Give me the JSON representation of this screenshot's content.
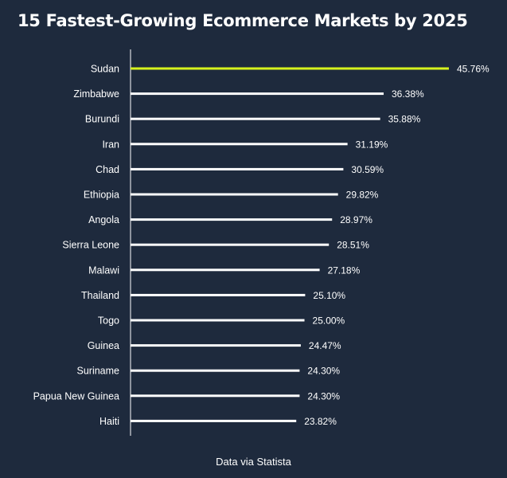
{
  "page": {
    "title": "15 Fastest-Growing Ecommerce Markets by 2025",
    "source": "Data via Statista"
  },
  "colors": {
    "background": "#1e2a3d",
    "highlight": "#d7f21d",
    "bar": "#ffffff",
    "text": "#ffffff"
  },
  "chart_data": {
    "type": "bar",
    "orientation": "horizontal",
    "title": "15 Fastest-Growing Ecommerce Markets by 2025",
    "xlabel": "",
    "ylabel": "",
    "xlim": [
      0,
      45.76
    ],
    "grid": false,
    "highlighted_category": "Sudan",
    "categories": [
      "Sudan",
      "Zimbabwe",
      "Burundi",
      "Iran",
      "Chad",
      "Ethiopia",
      "Angola",
      "Sierra Leone",
      "Malawi",
      "Thailand",
      "Togo",
      "Guinea",
      "Suriname",
      "Papua New Guinea",
      "Haiti"
    ],
    "values": [
      45.76,
      36.38,
      35.88,
      31.19,
      30.59,
      29.82,
      28.97,
      28.51,
      27.18,
      25.1,
      25.0,
      24.47,
      24.3,
      24.3,
      23.82
    ],
    "value_labels": [
      "45.76%",
      "36.38%",
      "35.88%",
      "31.19%",
      "30.59%",
      "29.82%",
      "28.97%",
      "28.51%",
      "27.18%",
      "25.10%",
      "25.00%",
      "24.47%",
      "24.30%",
      "24.30%",
      "23.82%"
    ]
  }
}
